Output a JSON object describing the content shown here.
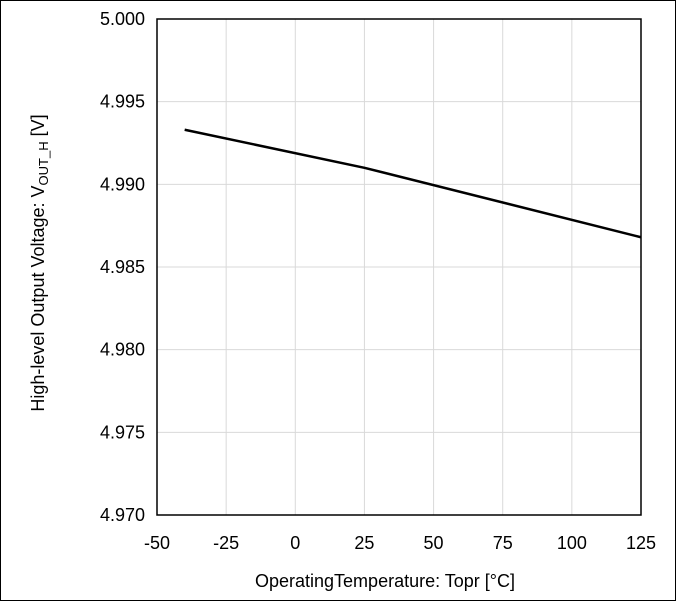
{
  "chart_data": {
    "type": "line",
    "title": "",
    "xlabel": "OperatingTemperature: Topr [°C]",
    "ylabel_main": "High-level Output Voltage: V",
    "ylabel_sub": "OUT_H",
    "ylabel_unit": " [V]",
    "xlim": [
      -50,
      125
    ],
    "ylim": [
      4.97,
      5.0
    ],
    "x_ticks": [
      -50,
      -25,
      0,
      25,
      50,
      75,
      100,
      125
    ],
    "x_tick_labels": [
      "-50",
      "-25",
      "0",
      "25",
      "50",
      "75",
      "100",
      "125"
    ],
    "y_ticks": [
      4.97,
      4.975,
      4.98,
      4.985,
      4.99,
      4.995,
      5.0
    ],
    "y_tick_labels": [
      "4.970",
      "4.975",
      "4.980",
      "4.985",
      "4.990",
      "4.995",
      "5.000"
    ],
    "grid": true,
    "series": [
      {
        "x": [
          -40,
          25,
          125
        ],
        "y": [
          4.9933,
          4.991,
          4.9868
        ],
        "color": "#000000"
      }
    ]
  }
}
